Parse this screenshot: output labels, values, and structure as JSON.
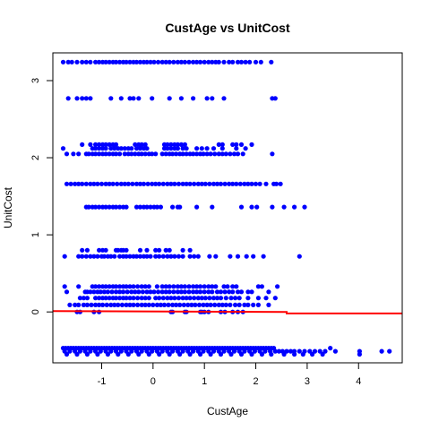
{
  "chart_data": {
    "type": "scatter",
    "title": "CustAge vs UnitCost",
    "xlabel": "CustAge",
    "ylabel": "UnitCost",
    "xlim": [
      -1.95,
      4.85
    ],
    "ylim": [
      -0.66,
      3.36
    ],
    "x_ticks": [
      -1,
      0,
      1,
      2,
      3,
      4
    ],
    "y_ticks": [
      0,
      1,
      2,
      3
    ],
    "grid": false,
    "point_color": "#0000ff",
    "line_color": "#ff0000",
    "series": [
      {
        "type": "scatter",
        "rows": [
          {
            "y": 3.24,
            "xs": [
              -1.75,
              -1.65,
              -1.58,
              -1.48,
              -1.38,
              -1.3,
              -1.22,
              -1.12,
              -1.05,
              -0.98,
              -0.92,
              -0.85,
              -0.78,
              -0.72,
              -0.65,
              -0.58,
              -0.52,
              -0.45,
              -0.38,
              -0.32,
              -0.25,
              -0.18,
              -0.12,
              -0.05,
              0.02,
              0.1,
              0.18,
              0.25,
              0.32,
              0.4,
              0.48,
              0.55,
              0.62,
              0.7,
              0.78,
              0.85,
              0.92,
              1.0,
              1.08,
              1.15,
              1.22,
              1.28,
              1.38,
              1.48,
              1.55,
              1.65,
              1.72,
              1.8,
              1.88,
              2.0,
              2.1,
              2.3
            ]
          },
          {
            "y": 2.77,
            "xs": [
              -1.65,
              -1.48,
              -1.38,
              -1.3,
              -1.22,
              -0.82,
              -0.62,
              -0.45,
              -0.38,
              -0.28,
              -0.02,
              0.32,
              0.55,
              0.78,
              1.05,
              1.15,
              1.38,
              2.32,
              2.38
            ]
          },
          {
            "y": 2.17,
            "xs": [
              -1.38,
              -1.22,
              -1.12,
              -1.05,
              -0.98,
              -0.92,
              -0.85,
              -0.78,
              -0.72,
              -0.35,
              -0.28,
              -0.22,
              -0.15,
              0.22,
              0.28,
              0.35,
              0.42,
              0.48,
              0.55,
              0.62,
              1.28,
              1.35,
              1.55,
              1.62,
              1.72,
              1.92
            ]
          },
          {
            "y": 2.12,
            "xs": [
              -1.75,
              -1.18,
              -1.12,
              -1.05,
              -0.98,
              -0.92,
              -0.82,
              -0.75,
              -0.68,
              -0.62,
              -0.55,
              -0.48,
              -0.42,
              -0.32,
              -0.25,
              -0.18,
              -0.12,
              0.22,
              0.28,
              0.35,
              0.42,
              0.48,
              0.58,
              0.65,
              0.85,
              0.95,
              1.05,
              1.18,
              1.35,
              1.62,
              1.8
            ]
          },
          {
            "y": 2.05,
            "xs": [
              -1.68,
              -1.55,
              -1.45,
              -1.3,
              -1.25,
              -1.18,
              -1.12,
              -1.05,
              -0.98,
              -0.92,
              -0.85,
              -0.78,
              -0.72,
              -0.65,
              -0.55,
              -0.48,
              -0.42,
              -0.35,
              -0.28,
              -0.22,
              -0.15,
              -0.08,
              -0.02,
              0.05,
              0.18,
              0.25,
              0.32,
              0.38,
              0.45,
              0.52,
              0.58,
              0.65,
              0.72,
              0.78,
              0.85,
              0.92,
              0.98,
              1.05,
              1.12,
              1.2,
              1.28,
              1.35,
              1.42,
              1.5,
              1.58,
              1.65,
              1.75,
              2.32
            ]
          },
          {
            "y": 1.66,
            "xs": [
              -1.68,
              -1.6,
              -1.52,
              -1.45,
              -1.38,
              -1.3,
              -1.22,
              -1.15,
              -1.08,
              -1.0,
              -0.92,
              -0.85,
              -0.78,
              -0.7,
              -0.62,
              -0.55,
              -0.48,
              -0.4,
              -0.32,
              -0.25,
              -0.18,
              -0.1,
              -0.02,
              0.05,
              0.12,
              0.2,
              0.28,
              0.35,
              0.42,
              0.5,
              0.58,
              0.65,
              0.72,
              0.8,
              0.88,
              0.95,
              1.02,
              1.1,
              1.18,
              1.25,
              1.32,
              1.4,
              1.48,
              1.55,
              1.62,
              1.7,
              1.78,
              1.85,
              1.92,
              2.0,
              2.08,
              2.2,
              2.35,
              2.4,
              2.48
            ]
          },
          {
            "y": 1.36,
            "xs": [
              -1.3,
              -1.25,
              -1.18,
              -1.12,
              -1.05,
              -0.98,
              -0.92,
              -0.85,
              -0.78,
              -0.72,
              -0.65,
              -0.58,
              -0.52,
              -0.32,
              -0.25,
              -0.18,
              -0.12,
              -0.05,
              0.02,
              0.08,
              0.15,
              0.38,
              0.48,
              0.52,
              0.85,
              1.15,
              1.72,
              1.92,
              2.02,
              2.32,
              2.55,
              2.75,
              2.95
            ]
          },
          {
            "y": 0.8,
            "xs": [
              -1.38,
              -1.28,
              -1.05,
              -0.98,
              -0.92,
              -0.72,
              -0.68,
              -0.62,
              -0.58,
              -0.52,
              -0.25,
              -0.12,
              0.05,
              0.12,
              0.25,
              0.32,
              0.58,
              0.72
            ]
          },
          {
            "y": 0.72,
            "xs": [
              -1.72,
              -1.45,
              -1.38,
              -1.3,
              -1.22,
              -1.15,
              -1.08,
              -1.0,
              -0.95,
              -0.88,
              -0.82,
              -0.75,
              -0.65,
              -0.58,
              -0.52,
              -0.45,
              -0.38,
              -0.32,
              -0.25,
              -0.18,
              -0.12,
              -0.05,
              0.05,
              0.12,
              0.2,
              0.28,
              0.35,
              0.42,
              0.5,
              0.58,
              0.72,
              0.8,
              0.88,
              1.1,
              1.22,
              1.5,
              1.65,
              1.82,
              1.95,
              2.15,
              2.85
            ]
          },
          {
            "y": 0.33,
            "xs": [
              -1.72,
              -1.45,
              -1.18,
              -1.12,
              -1.05,
              -0.98,
              -0.92,
              -0.85,
              -0.78,
              -0.72,
              -0.65,
              -0.58,
              -0.52,
              -0.45,
              -0.38,
              -0.3,
              -0.22,
              -0.15,
              -0.08,
              0.08,
              0.18,
              0.25,
              0.32,
              0.4,
              0.48,
              0.55,
              0.62,
              0.7,
              0.78,
              0.85,
              0.92,
              1.0,
              1.08,
              1.15,
              1.22,
              1.38,
              1.45,
              1.55,
              1.62,
              2.05,
              2.12,
              2.42
            ]
          },
          {
            "y": 0.26,
            "xs": [
              -1.68,
              -1.32,
              -1.28,
              -1.22,
              -1.15,
              -1.08,
              -1.02,
              -0.95,
              -0.88,
              -0.8,
              -0.72,
              -0.65,
              -0.58,
              -0.5,
              -0.42,
              -0.35,
              -0.28,
              -0.2,
              -0.12,
              -0.05,
              0.02,
              0.1,
              0.18,
              0.25,
              0.32,
              0.4,
              0.48,
              0.55,
              0.62,
              0.7,
              0.78,
              0.85,
              0.92,
              1.0,
              1.08,
              1.15,
              1.25,
              1.32,
              1.4,
              1.48,
              1.55,
              1.65,
              1.72,
              1.85,
              1.92,
              2.25
            ]
          },
          {
            "y": 0.18,
            "xs": [
              -1.42,
              -1.35,
              -1.28,
              -1.12,
              -1.05,
              -0.98,
              -0.92,
              -0.85,
              -0.78,
              -0.72,
              -0.65,
              -0.58,
              -0.52,
              -0.45,
              -0.38,
              -0.3,
              -0.22,
              -0.15,
              -0.08,
              0.05,
              0.12,
              0.2,
              0.28,
              0.35,
              0.42,
              0.5,
              0.58,
              0.65,
              0.72,
              0.8,
              0.88,
              0.95,
              1.02,
              1.1,
              1.18,
              1.25,
              1.32,
              1.42,
              1.52,
              1.6,
              1.68,
              1.85,
              2.05,
              2.2,
              2.38
            ]
          },
          {
            "y": 0.09,
            "xs": [
              -1.62,
              -1.52,
              -1.45,
              -1.35,
              -1.28,
              -1.2,
              -1.12,
              -1.05,
              -0.98,
              -0.9,
              -0.82,
              -0.75,
              -0.68,
              -0.6,
              -0.52,
              -0.45,
              -0.38,
              -0.3,
              -0.22,
              -0.15,
              -0.08,
              0.0,
              0.08,
              0.15,
              0.22,
              0.3,
              0.38,
              0.45,
              0.52,
              0.6,
              0.68,
              0.75,
              0.82,
              0.9,
              0.98,
              1.05,
              1.12,
              1.2,
              1.28,
              1.35,
              1.42,
              1.5,
              1.6,
              1.68,
              1.78,
              1.85,
              1.95,
              2.05,
              2.25
            ]
          },
          {
            "y": 0.0,
            "xs": [
              -1.48,
              -1.42,
              -1.15,
              -1.05,
              0.35,
              0.38,
              0.62,
              0.65,
              0.92,
              0.95,
              1.0,
              1.08,
              1.32,
              1.4,
              1.55,
              1.65,
              1.75
            ]
          },
          {
            "y": -0.47,
            "xs": [
              -1.75,
              -1.7,
              -1.65,
              -1.6,
              -1.55,
              -1.5,
              -1.45,
              -1.4,
              -1.35,
              -1.3,
              -1.25,
              -1.2,
              -1.15,
              -1.1,
              -1.05,
              -1.0,
              -0.95,
              -0.9,
              -0.85,
              -0.8,
              -0.75,
              -0.7,
              -0.65,
              -0.6,
              -0.55,
              -0.5,
              -0.45,
              -0.4,
              -0.35,
              -0.3,
              -0.25,
              -0.2,
              -0.15,
              -0.1,
              -0.05,
              0.0,
              0.05,
              0.1,
              0.15,
              0.2,
              0.25,
              0.3,
              0.35,
              0.4,
              0.45,
              0.5,
              0.55,
              0.6,
              0.65,
              0.7,
              0.75,
              0.8,
              0.85,
              0.9,
              0.95,
              1.0,
              1.05,
              1.1,
              1.15,
              1.2,
              1.25,
              1.3,
              1.35,
              1.4,
              1.45,
              1.5,
              1.55,
              1.6,
              1.65,
              1.7,
              1.75,
              1.8,
              1.85,
              1.9,
              1.95,
              2.0,
              2.05,
              2.1,
              2.15,
              2.2,
              2.25,
              2.3,
              2.35,
              3.45
            ]
          },
          {
            "y": -0.51,
            "xs": [
              -1.72,
              -1.62,
              -1.52,
              -1.42,
              -1.32,
              -1.22,
              -1.12,
              -1.02,
              -0.92,
              -0.82,
              -0.72,
              -0.62,
              -0.52,
              -0.42,
              -0.32,
              -0.22,
              -0.12,
              -0.02,
              0.08,
              0.18,
              0.28,
              0.38,
              0.48,
              0.58,
              0.68,
              0.78,
              0.88,
              0.98,
              1.08,
              1.18,
              1.28,
              1.38,
              1.48,
              1.58,
              1.68,
              1.78,
              1.88,
              1.98,
              2.08,
              2.18,
              2.28,
              2.38,
              2.45,
              2.52,
              2.6,
              2.68,
              2.75,
              2.85,
              2.95,
              3.05,
              3.15,
              3.25,
              3.35,
              3.55,
              4.02,
              4.45,
              4.6
            ]
          },
          {
            "y": -0.55,
            "xs": [
              -1.68,
              -1.48,
              -1.28,
              -1.08,
              -0.88,
              -0.68,
              -0.48,
              -0.28,
              -0.08,
              0.12,
              0.32,
              0.52,
              0.72,
              0.92,
              1.12,
              1.32,
              1.52,
              1.72,
              1.92,
              2.12,
              2.3,
              2.55,
              2.75,
              2.92,
              3.1,
              3.3,
              4.02
            ]
          }
        ]
      },
      {
        "type": "line",
        "points": [
          [
            -1.95,
            0.01
          ],
          [
            2.6,
            0.0
          ],
          [
            2.6,
            -0.02
          ],
          [
            4.85,
            -0.02
          ]
        ]
      }
    ]
  }
}
